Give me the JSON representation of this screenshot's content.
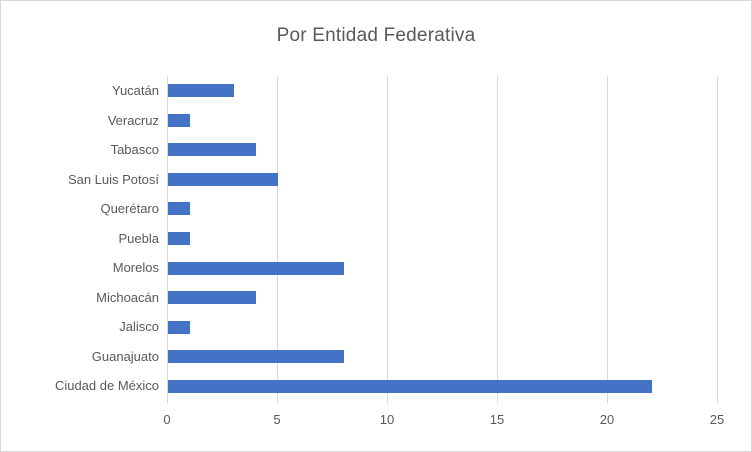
{
  "chart_data": {
    "type": "bar",
    "orientation": "horizontal",
    "title": "Por Entidad Federativa",
    "categories": [
      "Yucatán",
      "Veracruz",
      "Tabasco",
      "San Luis Potosí",
      "Querétaro",
      "Puebla",
      "Morelos",
      "Michoacán",
      "Jalisco",
      "Guanajuato",
      "Ciudad de México"
    ],
    "values": [
      3,
      1,
      4,
      5,
      1,
      1,
      8,
      4,
      1,
      8,
      22
    ],
    "x_ticks": [
      0,
      5,
      10,
      15,
      20,
      25
    ],
    "xlim": [
      0,
      25
    ],
    "xlabel": "",
    "ylabel": "",
    "grid": true,
    "legend": "none",
    "bar_color": "#4472C4",
    "text_color": "#595959",
    "gridline_color": "#D9D9D9",
    "border_color": "#D9D9D9"
  }
}
